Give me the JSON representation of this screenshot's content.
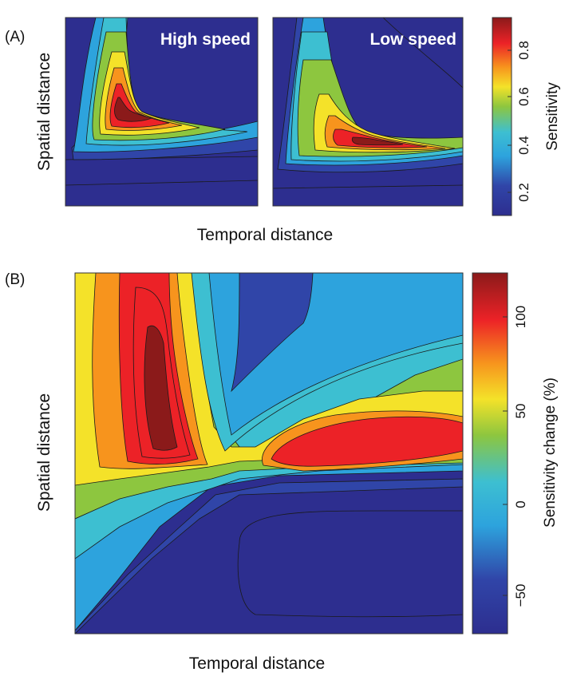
{
  "panels": [
    {
      "label": "(A)",
      "xlabel": "Temporal distance",
      "ylabel": "Spatial distance",
      "colorbar": {
        "label": "Sensitivity",
        "ticks": [
          "0.2",
          "0.4",
          "0.6",
          "0.8"
        ]
      }
    },
    {
      "label": "(B)",
      "xlabel": "Temporal distance",
      "ylabel": "Spatial distance",
      "colorbar": {
        "label": "Sensitivity change (%)",
        "ticks": [
          "−50",
          "0",
          "50",
          "100"
        ]
      }
    }
  ],
  "chart_data": [
    {
      "type": "heatmap",
      "subplot_titles": [
        "High speed",
        "Low speed"
      ],
      "xlabel": "Temporal distance",
      "ylabel": "Spatial distance",
      "colorbar_label": "Sensitivity",
      "color_range": [
        0.05,
        0.95
      ],
      "colorbar_ticks": [
        0.2,
        0.4,
        0.6,
        0.8
      ],
      "peak_value": 0.9,
      "colormap": "jet",
      "x_ticklabels": false,
      "y_ticklabels": false
    },
    {
      "type": "heatmap",
      "xlabel": "Temporal distance",
      "ylabel": "Spatial distance",
      "colorbar_label": "Sensitivity change (%)",
      "color_range": [
        -75,
        120
      ],
      "colorbar_ticks": [
        -50,
        0,
        50,
        100
      ],
      "peak_value": 115,
      "min_value": -70,
      "colormap": "jet",
      "x_ticklabels": false,
      "y_ticklabels": false
    }
  ]
}
